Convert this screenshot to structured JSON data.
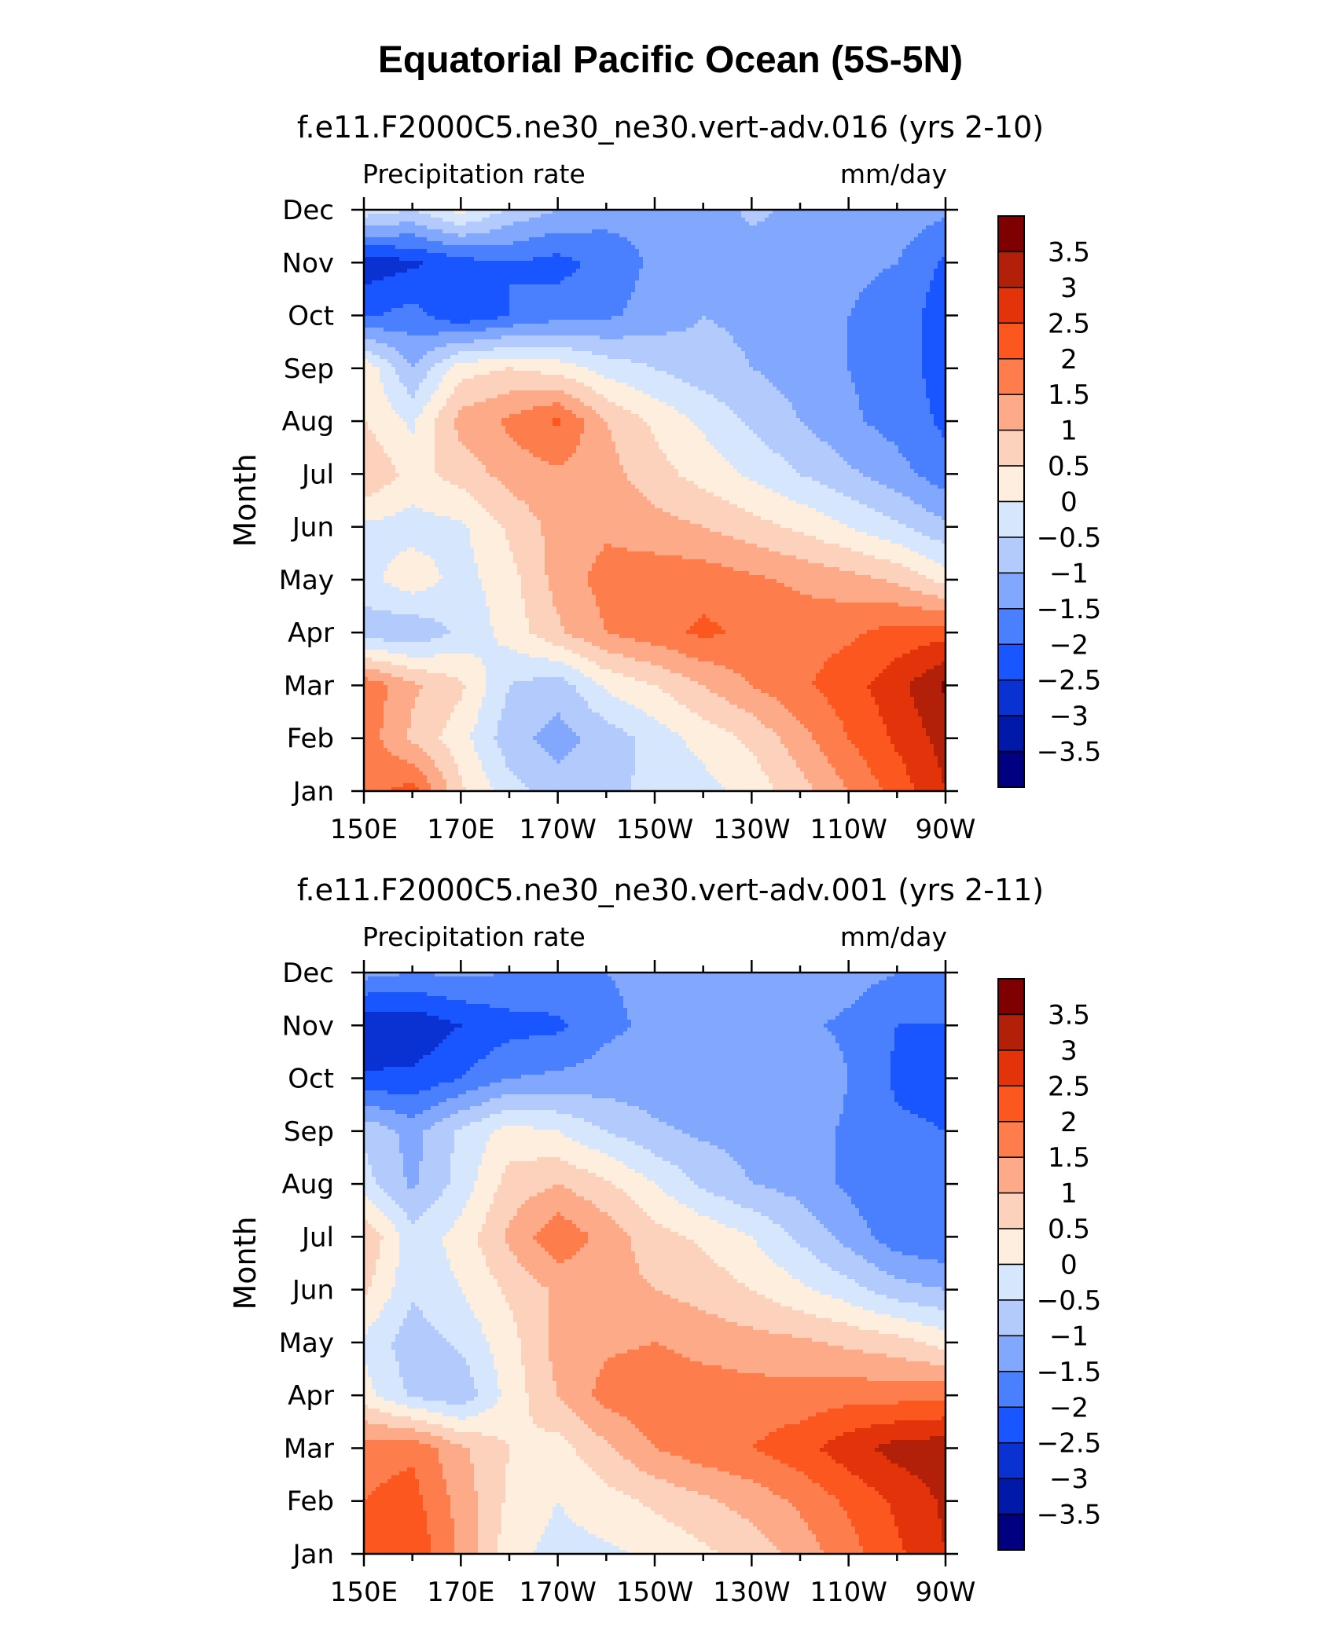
{
  "figure": {
    "title": "Equatorial Pacific Ocean (5S-5N)"
  },
  "palette": {
    "levels": [
      -3.5,
      -3,
      -2.5,
      -2,
      -1.5,
      -1,
      -0.5,
      0,
      0.5,
      1,
      1.5,
      2,
      2.5,
      3,
      3.5
    ],
    "level_labels": [
      "-3.5",
      "-3",
      "-2.5",
      "-2",
      "-1.5",
      "-1",
      "-0.5",
      "0",
      "0.5",
      "1",
      "1.5",
      "2",
      "2.5",
      "3",
      "3.5"
    ],
    "colors": [
      "#000080",
      "#0019a8",
      "#0a32d2",
      "#1a56ff",
      "#4a80fe",
      "#82a8fd",
      "#b3cbfc",
      "#d6e6fd",
      "#fdeedd",
      "#fdd2bd",
      "#fcaa87",
      "#fd7d4d",
      "#fc571e",
      "#e3330a",
      "#b3200a",
      "#7f0000"
    ]
  },
  "chart_data": [
    {
      "type": "heatmap",
      "title": "f.e11.F2000C5.ne30_ne30.vert-adv.016 (yrs 2-10)",
      "left_label": "Precipitation rate",
      "right_label": "mm/day",
      "ylabel": "Month",
      "x_tick_labels": [
        "150E",
        "170E",
        "170W",
        "150W",
        "130W",
        "110W",
        "90W"
      ],
      "y_tick_labels": [
        "Jan",
        "Feb",
        "Mar",
        "Apr",
        "May",
        "Jun",
        "Jul",
        "Aug",
        "Sep",
        "Oct",
        "Nov",
        "Dec"
      ],
      "xlim": [
        150,
        270
      ],
      "ylim": [
        1,
        12
      ],
      "units": "mm/day",
      "z_grid": {
        "x": [
          150,
          160,
          170,
          180,
          190,
          200,
          210,
          220,
          230,
          240,
          250,
          260,
          270
        ],
        "y": [
          1,
          2,
          3,
          4,
          5,
          6,
          7,
          8,
          9,
          10,
          11,
          12
        ],
        "z": [
          [
            1.8,
            2.2,
            0.6,
            -0.3,
            -0.8,
            -0.6,
            -0.4,
            -0.2,
            0.2,
            0.8,
            1.5,
            2.2,
            3.0
          ],
          [
            1.8,
            0.9,
            0.2,
            -0.8,
            -1.2,
            -0.8,
            -0.3,
            0.2,
            0.6,
            1.3,
            2.0,
            2.6,
            3.2
          ],
          [
            1.9,
            1.1,
            0.6,
            -0.5,
            -0.8,
            0.1,
            0.5,
            1.0,
            1.5,
            1.9,
            2.3,
            2.8,
            3.6
          ],
          [
            -0.8,
            -0.9,
            -0.4,
            0.2,
            0.9,
            1.5,
            1.8,
            2.1,
            1.9,
            1.8,
            1.9,
            2.2,
            2.3
          ],
          [
            -0.2,
            0.3,
            -0.2,
            0.3,
            1.2,
            1.7,
            1.8,
            1.8,
            1.6,
            1.4,
            1.2,
            0.9,
            0.3
          ],
          [
            -0.1,
            -0.2,
            -0.1,
            0.6,
            1.2,
            1.4,
            1.2,
            1.0,
            0.7,
            0.4,
            0.0,
            -0.4,
            -0.9
          ],
          [
            1.0,
            0.3,
            0.7,
            1.2,
            1.4,
            1.2,
            0.7,
            0.3,
            -0.1,
            -0.5,
            -0.9,
            -1.3,
            -1.8
          ],
          [
            0.5,
            -0.1,
            1.2,
            1.6,
            2.1,
            1.0,
            0.4,
            -0.1,
            -0.6,
            -1.0,
            -1.4,
            -1.7,
            -2.1
          ],
          [
            0.4,
            -1.0,
            0.3,
            0.5,
            0.3,
            -0.2,
            -0.5,
            -0.8,
            -1.0,
            -1.2,
            -1.5,
            -1.8,
            -2.2
          ],
          [
            -2.1,
            -1.8,
            -2.4,
            -2.0,
            -1.7,
            -1.6,
            -1.3,
            -1.0,
            -1.1,
            -1.3,
            -1.5,
            -1.7,
            -2.3
          ],
          [
            -2.8,
            -2.6,
            -2.2,
            -2.0,
            -2.2,
            -1.8,
            -1.4,
            -1.3,
            -1.2,
            -1.3,
            -1.4,
            -1.5,
            -2.1
          ],
          [
            -0.2,
            -0.5,
            0.2,
            -0.6,
            -1.0,
            -1.3,
            -1.4,
            -1.3,
            -0.9,
            -1.1,
            -1.2,
            -1.2,
            -1.4
          ]
        ]
      }
    },
    {
      "type": "heatmap",
      "title": "f.e11.F2000C5.ne30_ne30.vert-adv.001 (yrs 2-11)",
      "left_label": "Precipitation rate",
      "right_label": "mm/day",
      "ylabel": "Month",
      "x_tick_labels": [
        "150E",
        "170E",
        "170W",
        "150W",
        "130W",
        "110W",
        "90W"
      ],
      "y_tick_labels": [
        "Jan",
        "Feb",
        "Mar",
        "Apr",
        "May",
        "Jun",
        "Jul",
        "Aug",
        "Sep",
        "Oct",
        "Nov",
        "Dec"
      ],
      "xlim": [
        150,
        270
      ],
      "ylim": [
        1,
        12
      ],
      "units": "mm/day",
      "z_grid": {
        "x": [
          150,
          160,
          170,
          180,
          190,
          200,
          210,
          220,
          230,
          240,
          250,
          260,
          270
        ],
        "y": [
          1,
          2,
          3,
          4,
          5,
          6,
          7,
          8,
          9,
          10,
          11,
          12
        ],
        "z": [
          [
            2.2,
            2.4,
            1.4,
            0.2,
            -0.2,
            -0.1,
            0.1,
            0.4,
            0.7,
            1.2,
            1.8,
            2.4,
            3.0
          ],
          [
            2.0,
            2.2,
            1.3,
            0.4,
            0.0,
            0.3,
            0.6,
            0.9,
            1.2,
            1.6,
            2.1,
            2.6,
            3.1
          ],
          [
            1.8,
            1.9,
            1.1,
            0.5,
            0.3,
            0.9,
            1.5,
            1.8,
            2.0,
            2.3,
            2.8,
            3.2,
            3.3
          ],
          [
            0.2,
            -0.6,
            -0.9,
            0.2,
            1.0,
            1.7,
            1.9,
            1.8,
            1.7,
            1.7,
            1.8,
            1.8,
            1.9
          ],
          [
            -0.1,
            -0.8,
            -0.4,
            0.3,
            1.2,
            1.4,
            1.5,
            1.3,
            1.2,
            1.1,
            0.9,
            0.7,
            0.3
          ],
          [
            0.6,
            -0.4,
            0.0,
            0.6,
            1.1,
            1.2,
            1.0,
            0.8,
            0.5,
            0.1,
            -0.3,
            -0.8,
            -1.0
          ],
          [
            1.0,
            -0.3,
            0.2,
            1.1,
            1.9,
            1.3,
            0.7,
            0.4,
            0.0,
            -0.6,
            -1.2,
            -1.8,
            -2.0
          ],
          [
            -0.3,
            -1.1,
            -0.3,
            0.7,
            1.0,
            0.6,
            0.0,
            -0.6,
            -1.0,
            -1.2,
            -1.6,
            -2.0,
            -2.0
          ],
          [
            -0.6,
            -1.2,
            -0.4,
            0.2,
            0.0,
            -0.5,
            -0.9,
            -1.1,
            -1.2,
            -1.2,
            -1.6,
            -1.9,
            -2.0
          ],
          [
            -2.4,
            -2.4,
            -2.0,
            -1.5,
            -1.4,
            -1.3,
            -1.3,
            -1.3,
            -1.1,
            -1.0,
            -1.5,
            -2.1,
            -2.2
          ],
          [
            -3.0,
            -2.9,
            -2.5,
            -2.2,
            -2.1,
            -1.6,
            -1.4,
            -1.2,
            -1.1,
            -1.4,
            -1.6,
            -2.0,
            -2.0
          ],
          [
            -1.3,
            -1.5,
            -1.4,
            -1.5,
            -1.6,
            -1.5,
            -1.4,
            -1.3,
            -1.1,
            -1.2,
            -1.3,
            -1.5,
            -1.6
          ]
        ]
      }
    }
  ]
}
